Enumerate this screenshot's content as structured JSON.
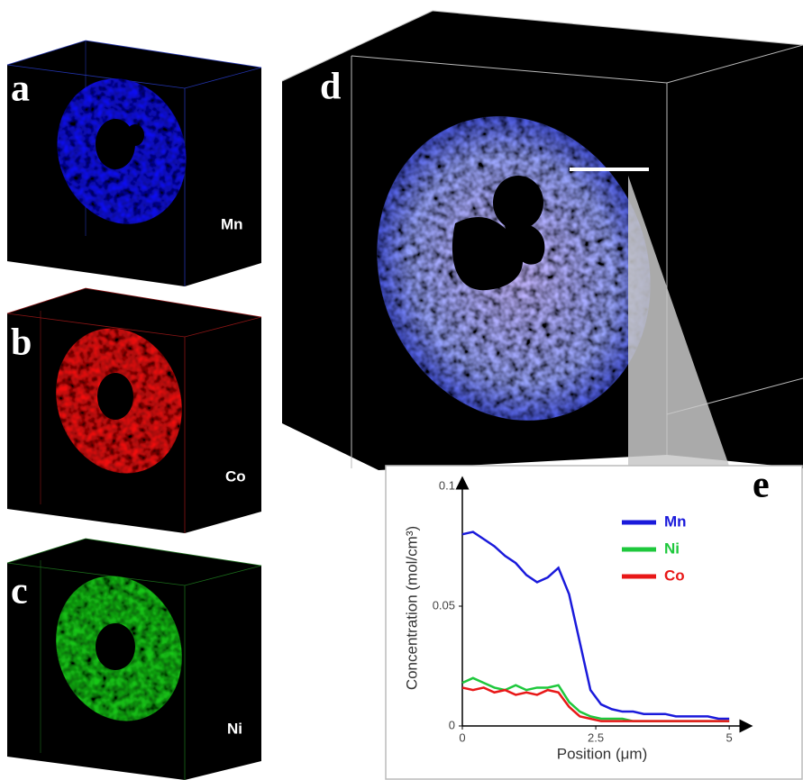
{
  "panels": [
    {
      "label": "a",
      "element": "Mn"
    },
    {
      "label": "b",
      "element": "Co"
    },
    {
      "label": "c",
      "element": "Ni"
    },
    {
      "label": "d"
    }
  ],
  "chart_data": {
    "type": "line",
    "panel_label": "e",
    "x_label": "Position (μm)",
    "y_label": "Concentration (mol/cm³)",
    "x": [
      0,
      0.2,
      0.4,
      0.6,
      0.8,
      1.0,
      1.2,
      1.4,
      1.6,
      1.8,
      2.0,
      2.2,
      2.4,
      2.6,
      2.8,
      3.0,
      3.2,
      3.4,
      3.6,
      3.8,
      4.0,
      4.2,
      4.4,
      4.6,
      4.8,
      5.0
    ],
    "series": [
      {
        "name": "Mn",
        "color": "#1a1adb",
        "values": [
          0.08,
          0.081,
          0.078,
          0.075,
          0.071,
          0.068,
          0.063,
          0.06,
          0.062,
          0.066,
          0.055,
          0.035,
          0.015,
          0.009,
          0.007,
          0.006,
          0.006,
          0.005,
          0.005,
          0.005,
          0.004,
          0.004,
          0.004,
          0.004,
          0.003,
          0.003
        ]
      },
      {
        "name": "Ni",
        "color": "#1ec83c",
        "values": [
          0.018,
          0.02,
          0.018,
          0.016,
          0.015,
          0.017,
          0.015,
          0.016,
          0.016,
          0.017,
          0.01,
          0.006,
          0.004,
          0.003,
          0.003,
          0.003,
          0.002,
          0.002,
          0.002,
          0.002,
          0.002,
          0.002,
          0.002,
          0.002,
          0.002,
          0.002
        ]
      },
      {
        "name": "Co",
        "color": "#e81818",
        "values": [
          0.016,
          0.015,
          0.016,
          0.014,
          0.015,
          0.013,
          0.014,
          0.013,
          0.015,
          0.014,
          0.008,
          0.004,
          0.003,
          0.002,
          0.002,
          0.002,
          0.002,
          0.002,
          0.002,
          0.002,
          0.002,
          0.002,
          0.002,
          0.002,
          0.002,
          0.002
        ]
      }
    ],
    "xlim": [
      0,
      5.2
    ],
    "ylim": [
      0,
      0.1
    ],
    "xticks": [
      0,
      2.5,
      5
    ],
    "yticks": [
      0,
      0.05,
      0.1
    ],
    "legend": "upper right"
  }
}
